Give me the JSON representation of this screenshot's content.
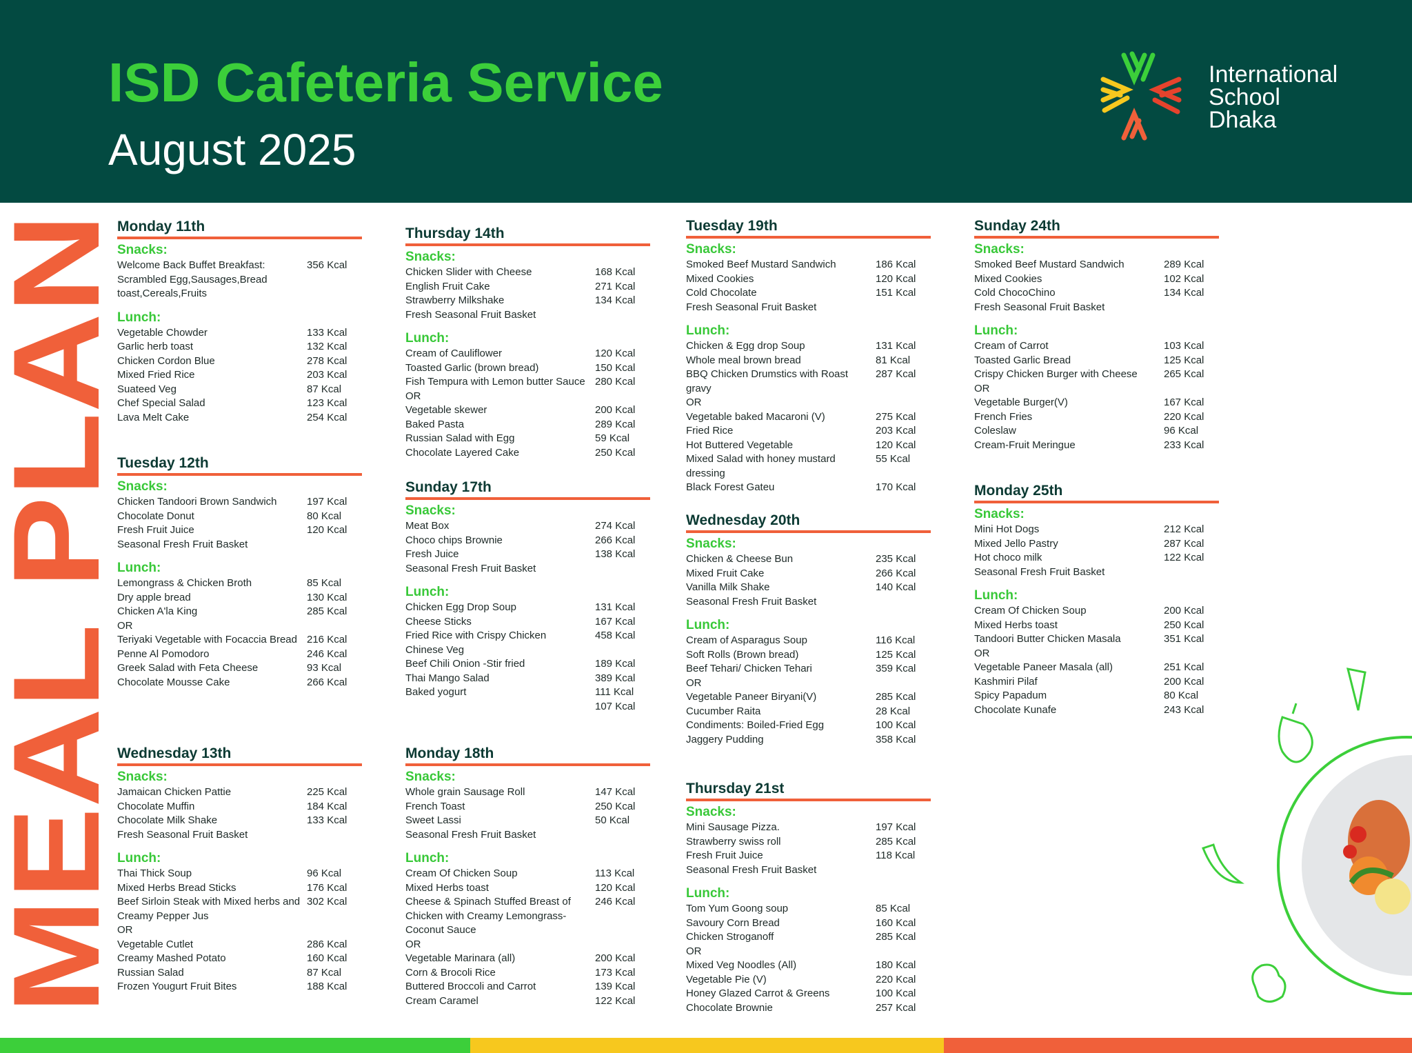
{
  "header": {
    "title": "ISD Cafeteria Service",
    "subtitle": "August 2025",
    "logo_lines": [
      "International",
      "School",
      "Dhaka"
    ],
    "side_text": "MEAL PLAN"
  },
  "days": [
    {
      "name": "Monday 11th",
      "snacks_label": "Snacks:",
      "snacks": [
        [
          "Welcome Back Buffet Breakfast: Scrambled Egg,Sausages,Bread toast,Cereals,Fruits",
          "356 Kcal"
        ]
      ],
      "lunch_label": "Lunch:",
      "lunch": [
        [
          "Vegetable Chowder",
          "133 Kcal"
        ],
        [
          "Garlic herb toast",
          "132 Kcal"
        ],
        [
          "Chicken Cordon Blue",
          "278 Kcal"
        ],
        [
          "Mixed Fried Rice",
          "203 Kcal"
        ],
        [
          "Suateed Veg",
          "87 Kcal"
        ],
        [
          "Chef Special Salad",
          "123 Kcal"
        ],
        [
          "Lava Melt Cake",
          "254 Kcal"
        ]
      ]
    },
    {
      "name": "Tuesday 12th",
      "snacks_label": "Snacks:",
      "snacks": [
        [
          "Chicken Tandoori Brown Sandwich",
          "197 Kcal"
        ],
        [
          "Chocolate Donut",
          "80 Kcal"
        ],
        [
          "Fresh Fruit Juice",
          "120 Kcal"
        ],
        [
          "Seasonal Fresh Fruit Basket"
        ]
      ],
      "lunch_label": "Lunch:",
      "lunch": [
        [
          "Lemongrass & Chicken Broth",
          "85 Kcal"
        ],
        [
          "Dry apple bread",
          "130 Kcal"
        ],
        [
          "Chicken A'la King",
          "285 Kcal"
        ],
        [
          "OR"
        ],
        [
          "Teriyaki Vegetable with Focaccia Bread",
          "216 Kcal"
        ],
        [
          "Penne Al Pomodoro",
          "246 Kcal"
        ],
        [
          "Greek Salad with Feta Cheese",
          "93 Kcal"
        ],
        [
          "Chocolate Mousse Cake",
          "266 Kcal"
        ]
      ]
    },
    {
      "name": "Wednesday 13th",
      "snacks_label": "Snacks:",
      "snacks": [
        [
          "Jamaican Chicken Pattie",
          "225 Kcal"
        ],
        [
          "Chocolate Muffin",
          "184 Kcal"
        ],
        [
          "Chocolate Milk Shake",
          "133 Kcal"
        ],
        [
          "Fresh Seasonal Fruit Basket"
        ]
      ],
      "lunch_label": "Lunch:",
      "lunch": [
        [
          "Thai Thick Soup",
          "96 Kcal"
        ],
        [
          "Mixed Herbs Bread Sticks",
          "176 Kcal"
        ],
        [
          "Beef Sirloin Steak with Mixed herbs and Creamy Pepper Jus",
          "302 Kcal"
        ],
        [
          "OR"
        ],
        [
          "Vegetable Cutlet",
          "286 Kcal"
        ],
        [
          "Creamy Mashed Potato",
          "160 Kcal"
        ],
        [
          "Russian Salad",
          "87 Kcal"
        ],
        [
          "Frozen Yougurt Fruit Bites",
          "188 Kcal"
        ]
      ]
    },
    {
      "name": "Thursday 14th",
      "snacks_label": "Snacks:",
      "snacks": [
        [
          "Chicken Slider with Cheese",
          "168 Kcal"
        ],
        [
          "English Fruit Cake",
          "271 Kcal"
        ],
        [
          "Strawberry Milkshake",
          "134 Kcal"
        ],
        [
          "Fresh Seasonal Fruit Basket"
        ]
      ],
      "lunch_label": "Lunch:",
      "lunch": [
        [
          "Cream of Cauliflower",
          "120 Kcal"
        ],
        [
          "Toasted Garlic (brown bread)",
          "150 Kcal"
        ],
        [
          "Fish Tempura with Lemon butter Sauce",
          "280 Kcal"
        ],
        [
          "OR"
        ],
        [
          "Vegetable skewer",
          "200 Kcal"
        ],
        [
          "Baked Pasta",
          "289 Kcal"
        ],
        [
          "Russian Salad with Egg",
          "59 Kcal"
        ],
        [
          "Chocolate Layered Cake",
          "250 Kcal"
        ]
      ]
    },
    {
      "name": "Sunday 17th",
      "snacks_label": "Snacks:",
      "snacks": [
        [
          "Meat Box",
          "274 Kcal"
        ],
        [
          "Choco chips Brownie",
          "266 Kcal"
        ],
        [
          "Fresh Juice",
          "138 Kcal"
        ],
        [
          "Seasonal Fresh Fruit Basket"
        ]
      ],
      "lunch_label": "Lunch:",
      "lunch": [
        [
          "Chicken Egg Drop Soup",
          "131 Kcal"
        ],
        [
          "Cheese Sticks",
          "167 Kcal"
        ],
        [
          "Fried Rice with  Crispy Chicken",
          "458 Kcal"
        ],
        [
          "Chinese Veg"
        ],
        [
          "Beef Chili Onion -Stir fried",
          "189 Kcal"
        ],
        [
          "Thai Mango Salad",
          "389 Kcal"
        ],
        [
          "Baked yogurt",
          "111 Kcal"
        ],
        [
          null,
          "107 Kcal"
        ]
      ]
    },
    {
      "name": "Monday 18th",
      "snacks_label": "Snacks:",
      "snacks": [
        [
          "Whole grain Sausage Roll",
          "147 Kcal"
        ],
        [
          "French Toast",
          "250 Kcal"
        ],
        [
          "Sweet Lassi",
          "50 Kcal"
        ],
        [
          "Seasonal Fresh Fruit Basket"
        ]
      ],
      "lunch_label": "Lunch:",
      "lunch": [
        [
          "Cream Of Chicken Soup",
          "113 Kcal"
        ],
        [
          "Mixed Herbs toast",
          "120 Kcal"
        ],
        [
          "Cheese & Spinach Stuffed Breast of Chicken with Creamy Lemongrass-Coconut Sauce",
          "246 Kcal"
        ],
        [
          "OR"
        ],
        [
          "Vegetable Marinara (all)",
          "200 Kcal"
        ],
        [
          "Corn & Brocoli Rice",
          "173 Kcal"
        ],
        [
          "Buttered Broccoli and Carrot",
          "139 Kcal"
        ],
        [
          "Cream Caramel",
          "122 Kcal"
        ]
      ]
    },
    {
      "name": "Tuesday 19th",
      "snacks_label": "Snacks:",
      "snacks": [
        [
          "Smoked Beef Mustard Sandwich",
          "186 Kcal"
        ],
        [
          "Mixed Cookies",
          "120 Kcal"
        ],
        [
          "Cold Chocolate",
          "151 Kcal"
        ],
        [
          "Fresh Seasonal Fruit Basket"
        ]
      ],
      "lunch_label": "Lunch:",
      "lunch": [
        [
          "Chicken & Egg drop Soup",
          "131 Kcal"
        ],
        [
          "Whole meal brown bread",
          "81 Kcal"
        ],
        [
          "BBQ Chicken Drumstics with Roast gravy",
          "287 Kcal"
        ],
        [
          "OR"
        ],
        [
          "Vegetable baked Macaroni (V)",
          "275 Kcal"
        ],
        [
          "Fried Rice",
          "203 Kcal"
        ],
        [
          "Hot Buttered Vegetable",
          "120 Kcal"
        ],
        [
          "Mixed Salad with honey mustard dressing",
          "55 Kcal"
        ],
        [
          "Black Forest Gateu",
          "170 Kcal"
        ]
      ]
    },
    {
      "name": "Wednesday 20th",
      "snacks_label": "Snacks:",
      "snacks": [
        [
          "Chicken & Cheese Bun",
          "235 Kcal"
        ],
        [
          "Mixed Fruit Cake",
          "266 Kcal"
        ],
        [
          "Vanilla Milk Shake",
          "140 Kcal"
        ],
        [
          "Seasonal Fresh Fruit Basket"
        ]
      ],
      "lunch_label": "Lunch:",
      "lunch": [
        [
          "Cream of Asparagus Soup",
          "116 Kcal"
        ],
        [
          "Soft Rolls (Brown bread)",
          "125 Kcal"
        ],
        [
          "Beef Tehari/ Chicken Tehari",
          "359 Kcal"
        ],
        [
          "OR"
        ],
        [
          "Vegetable Paneer Biryani(V)",
          "285 Kcal"
        ],
        [
          "Cucumber Raita",
          "28 Kcal"
        ],
        [
          "Condiments: Boiled-Fried Egg",
          "100 Kcal"
        ],
        [
          "Jaggery Pudding",
          "358 Kcal"
        ]
      ]
    },
    {
      "name": "Thursday 21st",
      "snacks_label": "Snacks:",
      "snacks": [
        [
          "Mini Sausage Pizza.",
          "197 Kcal"
        ],
        [
          "Strawberry swiss roll",
          "285 Kcal"
        ],
        [
          "Fresh Fruit Juice",
          "118 Kcal"
        ],
        [
          "Seasonal Fresh Fruit Basket"
        ]
      ],
      "lunch_label": "Lunch:",
      "lunch": [
        [
          "Tom Yum Goong soup",
          "85 Kcal"
        ],
        [
          "Savoury Corn Bread",
          "160 Kcal"
        ],
        [
          "Chicken Stroganoff",
          "285 Kcal"
        ],
        [
          "OR"
        ],
        [
          "Mixed Veg Noodles (All)",
          "180 Kcal"
        ],
        [
          "Vegetable Pie (V)",
          "220 Kcal"
        ],
        [
          "Honey Glazed Carrot & Greens",
          "100 Kcal"
        ],
        [
          "Chocolate Brownie",
          "257 Kcal"
        ]
      ]
    },
    {
      "name": "Sunday 24th",
      "snacks_label": "Snacks:",
      "snacks": [
        [
          "Smoked Beef Mustard Sandwich",
          "289 Kcal"
        ],
        [
          "Mixed Cookies",
          "102 Kcal"
        ],
        [
          "Cold ChocoChino",
          "134 Kcal"
        ],
        [
          "Fresh Seasonal Fruit Basket"
        ]
      ],
      "lunch_label": "Lunch:",
      "lunch": [
        [
          "Cream of Carrot",
          "103 Kcal"
        ],
        [
          "Toasted Garlic Bread",
          "125 Kcal"
        ],
        [
          "Crispy Chicken Burger with Cheese",
          "265 Kcal"
        ],
        [
          "OR"
        ],
        [
          "Vegetable Burger(V)",
          "167 Kcal"
        ],
        [
          "French Fries",
          "220 Kcal"
        ],
        [
          "Coleslaw",
          "96 Kcal"
        ],
        [
          "Cream-Fruit Meringue",
          "233 Kcal"
        ]
      ]
    },
    {
      "name": "Monday 25th",
      "snacks_label": "Snacks:",
      "snacks": [
        [
          "Mini Hot Dogs",
          "212 Kcal"
        ],
        [
          "Mixed Jello Pastry",
          "287 Kcal"
        ],
        [
          "Hot choco milk",
          "122 Kcal"
        ],
        [
          "Seasonal Fresh Fruit Basket"
        ]
      ],
      "lunch_label": "Lunch:",
      "lunch": [
        [
          "Cream Of Chicken Soup",
          "200 Kcal"
        ],
        [
          "Mixed Herbs toast",
          "250 Kcal"
        ],
        [
          "Tandoori Butter Chicken Masala",
          "351 Kcal"
        ],
        [
          "OR"
        ],
        [
          "Vegetable Paneer Masala (all)",
          "251 Kcal"
        ],
        [
          "Kashmiri Pilaf",
          "200 Kcal"
        ],
        [
          "Spicy Papadum",
          "80 Kcal"
        ],
        [
          "Chocolate Kunafe",
          "243 Kcal"
        ]
      ]
    }
  ]
}
